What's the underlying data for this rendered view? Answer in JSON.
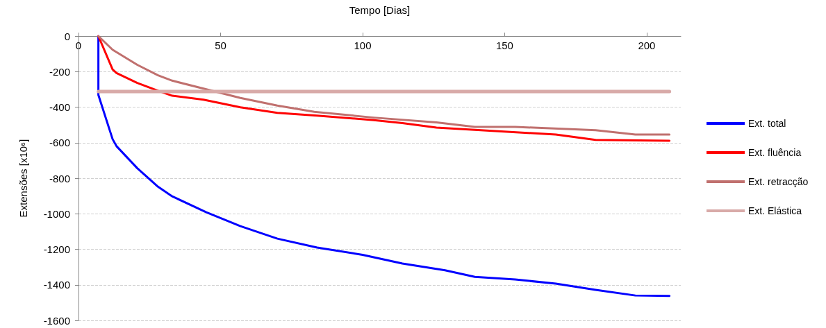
{
  "chart_data": {
    "type": "line",
    "xlabel": "Tempo [Dias]",
    "ylabel": "Extensões [x10⁶]",
    "xlim": [
      0,
      212
    ],
    "xticks": [
      0,
      50,
      100,
      150,
      200
    ],
    "ylim": [
      -1600,
      0
    ],
    "yticks": [
      -1600,
      -1400,
      -1200,
      -1000,
      -800,
      -600,
      -400,
      -200,
      0
    ],
    "grid": "y",
    "legend": "right",
    "marker": "none",
    "line_style": "solid",
    "series": [
      {
        "name": "Ext. total",
        "color": "#0000ff",
        "x": [
          7,
          7,
          12,
          13.4,
          20.7,
          28,
          33,
          45,
          57,
          70,
          84,
          100,
          114,
          129,
          139.5,
          153.7,
          168,
          182,
          196,
          208
        ],
        "values": [
          0,
          -332,
          -580,
          -620,
          -744,
          -848,
          -902,
          -992,
          -1070,
          -1140,
          -1190,
          -1231,
          -1280,
          -1318,
          -1355,
          -1370,
          -1393,
          -1428,
          -1460,
          -1462
        ]
      },
      {
        "name": "Ext. fluência",
        "color": "#ff0000",
        "x": [
          7,
          12,
          13.4,
          20.7,
          28,
          33,
          44,
          57,
          70,
          84,
          104,
          114,
          126,
          139.5,
          168,
          182,
          208
        ],
        "values": [
          0,
          -188,
          -208,
          -264,
          -308,
          -336,
          -358,
          -401,
          -432,
          -448,
          -473,
          -490,
          -515,
          -528,
          -554,
          -584,
          -589
        ]
      },
      {
        "name": "Ext. retracção",
        "color": "#c0706e",
        "x": [
          7,
          12,
          20.7,
          28,
          33,
          57,
          70,
          83,
          104,
          126,
          139.5,
          153.7,
          182,
          196,
          208
        ],
        "values": [
          0,
          -77,
          -162,
          -221,
          -251,
          -348,
          -391,
          -426,
          -459,
          -486,
          -511,
          -511,
          -530,
          -554,
          -554
        ]
      },
      {
        "name": "Ext. Elástica",
        "color": "#d8aaa8",
        "x": [
          7,
          208
        ],
        "values": [
          -312,
          -312
        ]
      }
    ]
  }
}
